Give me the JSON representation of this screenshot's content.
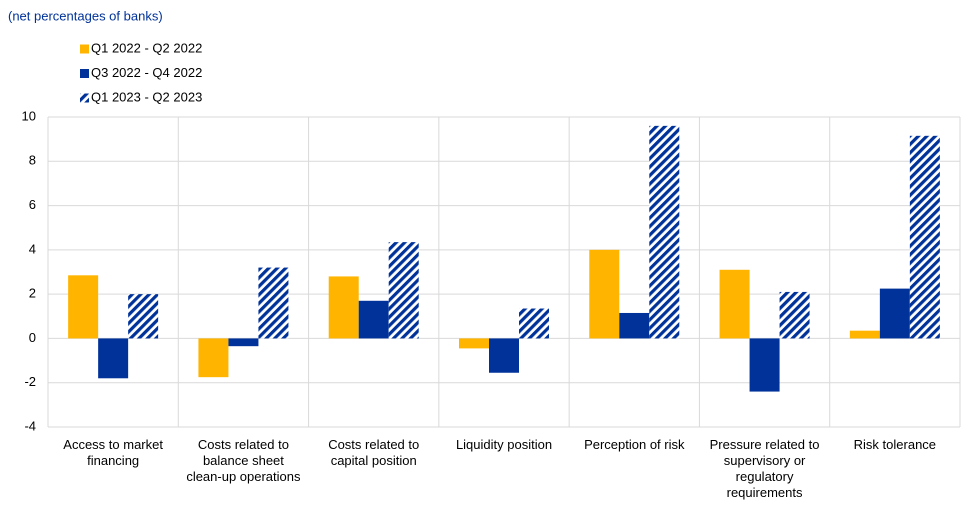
{
  "chart_data": {
    "type": "bar",
    "subtitle": "(net percentages of banks)",
    "categories": [
      "Access to market financing",
      "Costs related to balance sheet clean-up operations",
      "Costs related to capital position",
      "Liquidity position",
      "Perception of risk",
      "Pressure related to supervisory or regulatory requirements",
      "Risk tolerance"
    ],
    "series": [
      {
        "name": "Q1 2022 - Q2 2022",
        "color": "#ffb400",
        "values": [
          2.85,
          -1.75,
          2.8,
          -0.45,
          4.0,
          3.1,
          0.35
        ]
      },
      {
        "name": "Q3 2022 - Q4 2022",
        "color": "#003299",
        "values": [
          -1.8,
          -0.35,
          1.7,
          -1.55,
          1.15,
          -2.4,
          2.25
        ]
      },
      {
        "name": "Q1 2023 - Q2 2023",
        "color": "#003299",
        "pattern": "diagonal-stripes",
        "values": [
          2.0,
          3.2,
          4.35,
          1.35,
          9.6,
          2.1,
          9.15
        ]
      }
    ],
    "ylim": [
      -4,
      10
    ],
    "yticks": [
      -4,
      -2,
      0,
      2,
      4,
      6,
      8,
      10
    ],
    "grid": true
  }
}
